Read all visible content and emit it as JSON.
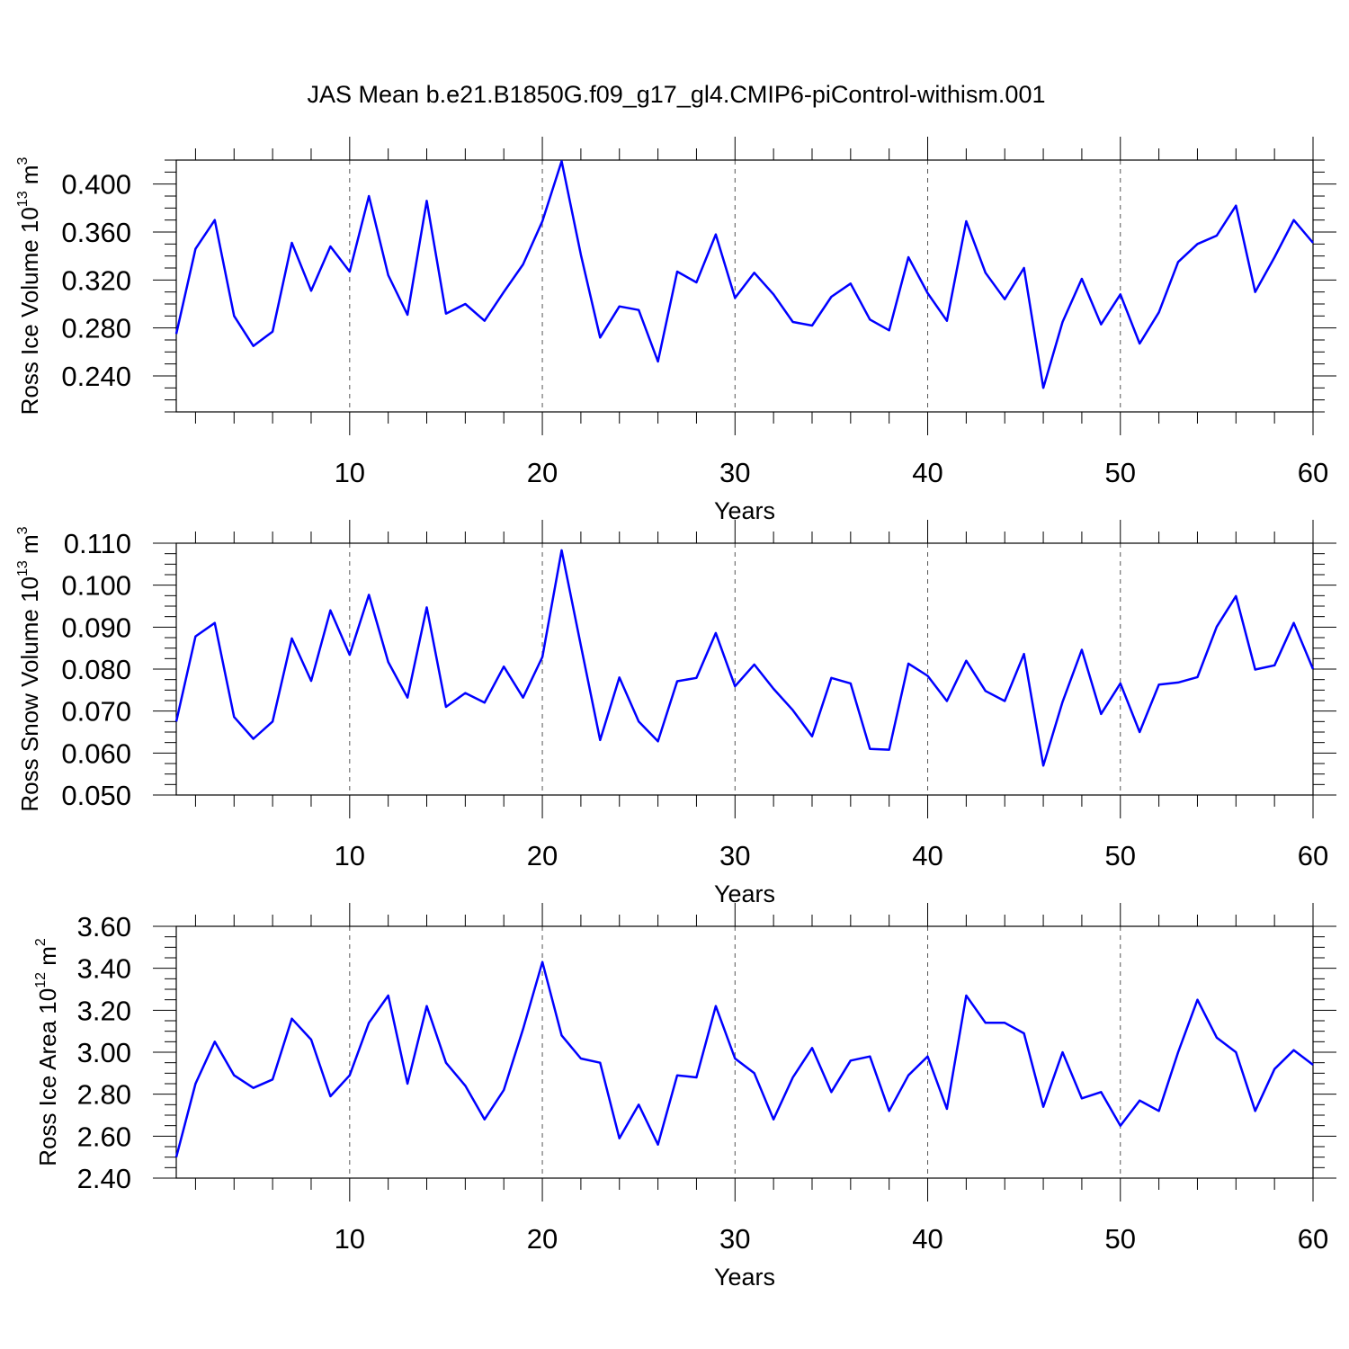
{
  "title": "JAS Mean b.e21.B1850G.f09_g17_gl4.CMIP6-piControl-withism.001",
  "colors": {
    "series": "#0000ff",
    "axes": "#000000",
    "grid": "#555555"
  },
  "chart_data": [
    {
      "type": "line",
      "ylabel": {
        "text": "Ross Ice Volume 10",
        "sup": "13",
        "unit": " m",
        "unit_sup": "3"
      },
      "xlabel": "Years",
      "xlim": [
        1,
        60
      ],
      "ylim": [
        0.21,
        0.42
      ],
      "xticks": [
        10,
        20,
        30,
        40,
        50,
        60
      ],
      "yticks": [
        0.24,
        0.28,
        0.32,
        0.36,
        0.4
      ],
      "ytick_labels": [
        "0.240",
        "0.280",
        "0.320",
        "0.360",
        "0.400"
      ],
      "grid_x": true,
      "x": [
        1,
        2,
        3,
        4,
        5,
        6,
        7,
        8,
        9,
        10,
        11,
        12,
        13,
        14,
        15,
        16,
        17,
        18,
        19,
        20,
        21,
        22,
        23,
        24,
        25,
        26,
        27,
        28,
        29,
        30,
        31,
        32,
        33,
        34,
        35,
        36,
        37,
        38,
        39,
        40,
        41,
        42,
        43,
        44,
        45,
        46,
        47,
        48,
        49,
        50,
        51,
        52,
        53,
        54,
        55,
        56,
        57,
        58,
        59,
        60
      ],
      "values": [
        0.275,
        0.346,
        0.37,
        0.29,
        0.265,
        0.277,
        0.351,
        0.311,
        0.348,
        0.327,
        0.39,
        0.324,
        0.291,
        0.386,
        0.292,
        0.3,
        0.286,
        0.31,
        0.333,
        0.369,
        0.419,
        0.341,
        0.272,
        0.298,
        0.295,
        0.252,
        0.327,
        0.318,
        0.358,
        0.305,
        0.326,
        0.308,
        0.285,
        0.282,
        0.306,
        0.317,
        0.287,
        0.278,
        0.339,
        0.309,
        0.286,
        0.369,
        0.326,
        0.304,
        0.33,
        0.23,
        0.285,
        0.321,
        0.283,
        0.308,
        0.267,
        0.293,
        0.335,
        0.35,
        0.357,
        0.382,
        0.31,
        0.339,
        0.37,
        0.351
      ]
    },
    {
      "type": "line",
      "ylabel": {
        "text": "Ross Snow Volume 10",
        "sup": "13",
        "unit": " m",
        "unit_sup": "3"
      },
      "xlabel": "Years",
      "xlim": [
        1,
        60
      ],
      "ylim": [
        0.05,
        0.11
      ],
      "xticks": [
        10,
        20,
        30,
        40,
        50,
        60
      ],
      "yticks": [
        0.05,
        0.06,
        0.07,
        0.08,
        0.09,
        0.1,
        0.11
      ],
      "ytick_labels": [
        "0.050",
        "0.060",
        "0.070",
        "0.080",
        "0.090",
        "0.100",
        "0.110"
      ],
      "grid_x": true,
      "x": [
        1,
        2,
        3,
        4,
        5,
        6,
        7,
        8,
        9,
        10,
        11,
        12,
        13,
        14,
        15,
        16,
        17,
        18,
        19,
        20,
        21,
        22,
        23,
        24,
        25,
        26,
        27,
        28,
        29,
        30,
        31,
        32,
        33,
        34,
        35,
        36,
        37,
        38,
        39,
        40,
        41,
        42,
        43,
        44,
        45,
        46,
        47,
        48,
        49,
        50,
        51,
        52,
        53,
        54,
        55,
        56,
        57,
        58,
        59,
        60
      ],
      "values": [
        0.0675,
        0.0878,
        0.091,
        0.0686,
        0.0634,
        0.0675,
        0.0873,
        0.0772,
        0.094,
        0.0834,
        0.0977,
        0.0817,
        0.0732,
        0.0947,
        0.071,
        0.0743,
        0.072,
        0.0806,
        0.0732,
        0.0829,
        0.1083,
        0.0856,
        0.0631,
        0.078,
        0.0675,
        0.0628,
        0.0771,
        0.0779,
        0.0886,
        0.0759,
        0.0811,
        0.0753,
        0.0702,
        0.064,
        0.0779,
        0.0766,
        0.061,
        0.0608,
        0.0813,
        0.0784,
        0.0724,
        0.082,
        0.0748,
        0.0724,
        0.0836,
        0.057,
        0.0722,
        0.0846,
        0.0693,
        0.0766,
        0.065,
        0.0763,
        0.0768,
        0.0781,
        0.0901,
        0.0974,
        0.0799,
        0.0809,
        0.091,
        0.08
      ]
    },
    {
      "type": "line",
      "ylabel": {
        "text": "Ross Ice Area 10",
        "sup": "12",
        "unit": " m",
        "unit_sup": "2"
      },
      "xlabel": "Years",
      "xlim": [
        1,
        60
      ],
      "ylim": [
        2.4,
        3.6
      ],
      "xticks": [
        10,
        20,
        30,
        40,
        50,
        60
      ],
      "yticks": [
        2.4,
        2.6,
        2.8,
        3.0,
        3.2,
        3.4,
        3.6
      ],
      "ytick_labels": [
        "2.40",
        "2.60",
        "2.80",
        "3.00",
        "3.20",
        "3.40",
        "3.60"
      ],
      "grid_x": true,
      "x": [
        1,
        2,
        3,
        4,
        5,
        6,
        7,
        8,
        9,
        10,
        11,
        12,
        13,
        14,
        15,
        16,
        17,
        18,
        19,
        20,
        21,
        22,
        23,
        24,
        25,
        26,
        27,
        28,
        29,
        30,
        31,
        32,
        33,
        34,
        35,
        36,
        37,
        38,
        39,
        40,
        41,
        42,
        43,
        44,
        45,
        46,
        47,
        48,
        49,
        50,
        51,
        52,
        53,
        54,
        55,
        56,
        57,
        58,
        59,
        60
      ],
      "values": [
        2.5,
        2.85,
        3.05,
        2.89,
        2.83,
        2.87,
        3.16,
        3.06,
        2.79,
        2.89,
        3.14,
        3.27,
        2.85,
        3.22,
        2.95,
        2.84,
        2.68,
        2.82,
        3.11,
        3.43,
        3.08,
        2.97,
        2.95,
        2.59,
        2.75,
        2.56,
        2.89,
        2.88,
        3.22,
        2.97,
        2.9,
        2.68,
        2.88,
        3.02,
        2.81,
        2.96,
        2.98,
        2.72,
        2.89,
        2.98,
        2.73,
        3.27,
        3.14,
        3.14,
        3.09,
        2.74,
        3.0,
        2.78,
        2.81,
        2.65,
        2.77,
        2.72,
        3.0,
        3.25,
        3.07,
        3.0,
        2.72,
        2.92,
        3.01,
        2.94
      ]
    }
  ]
}
